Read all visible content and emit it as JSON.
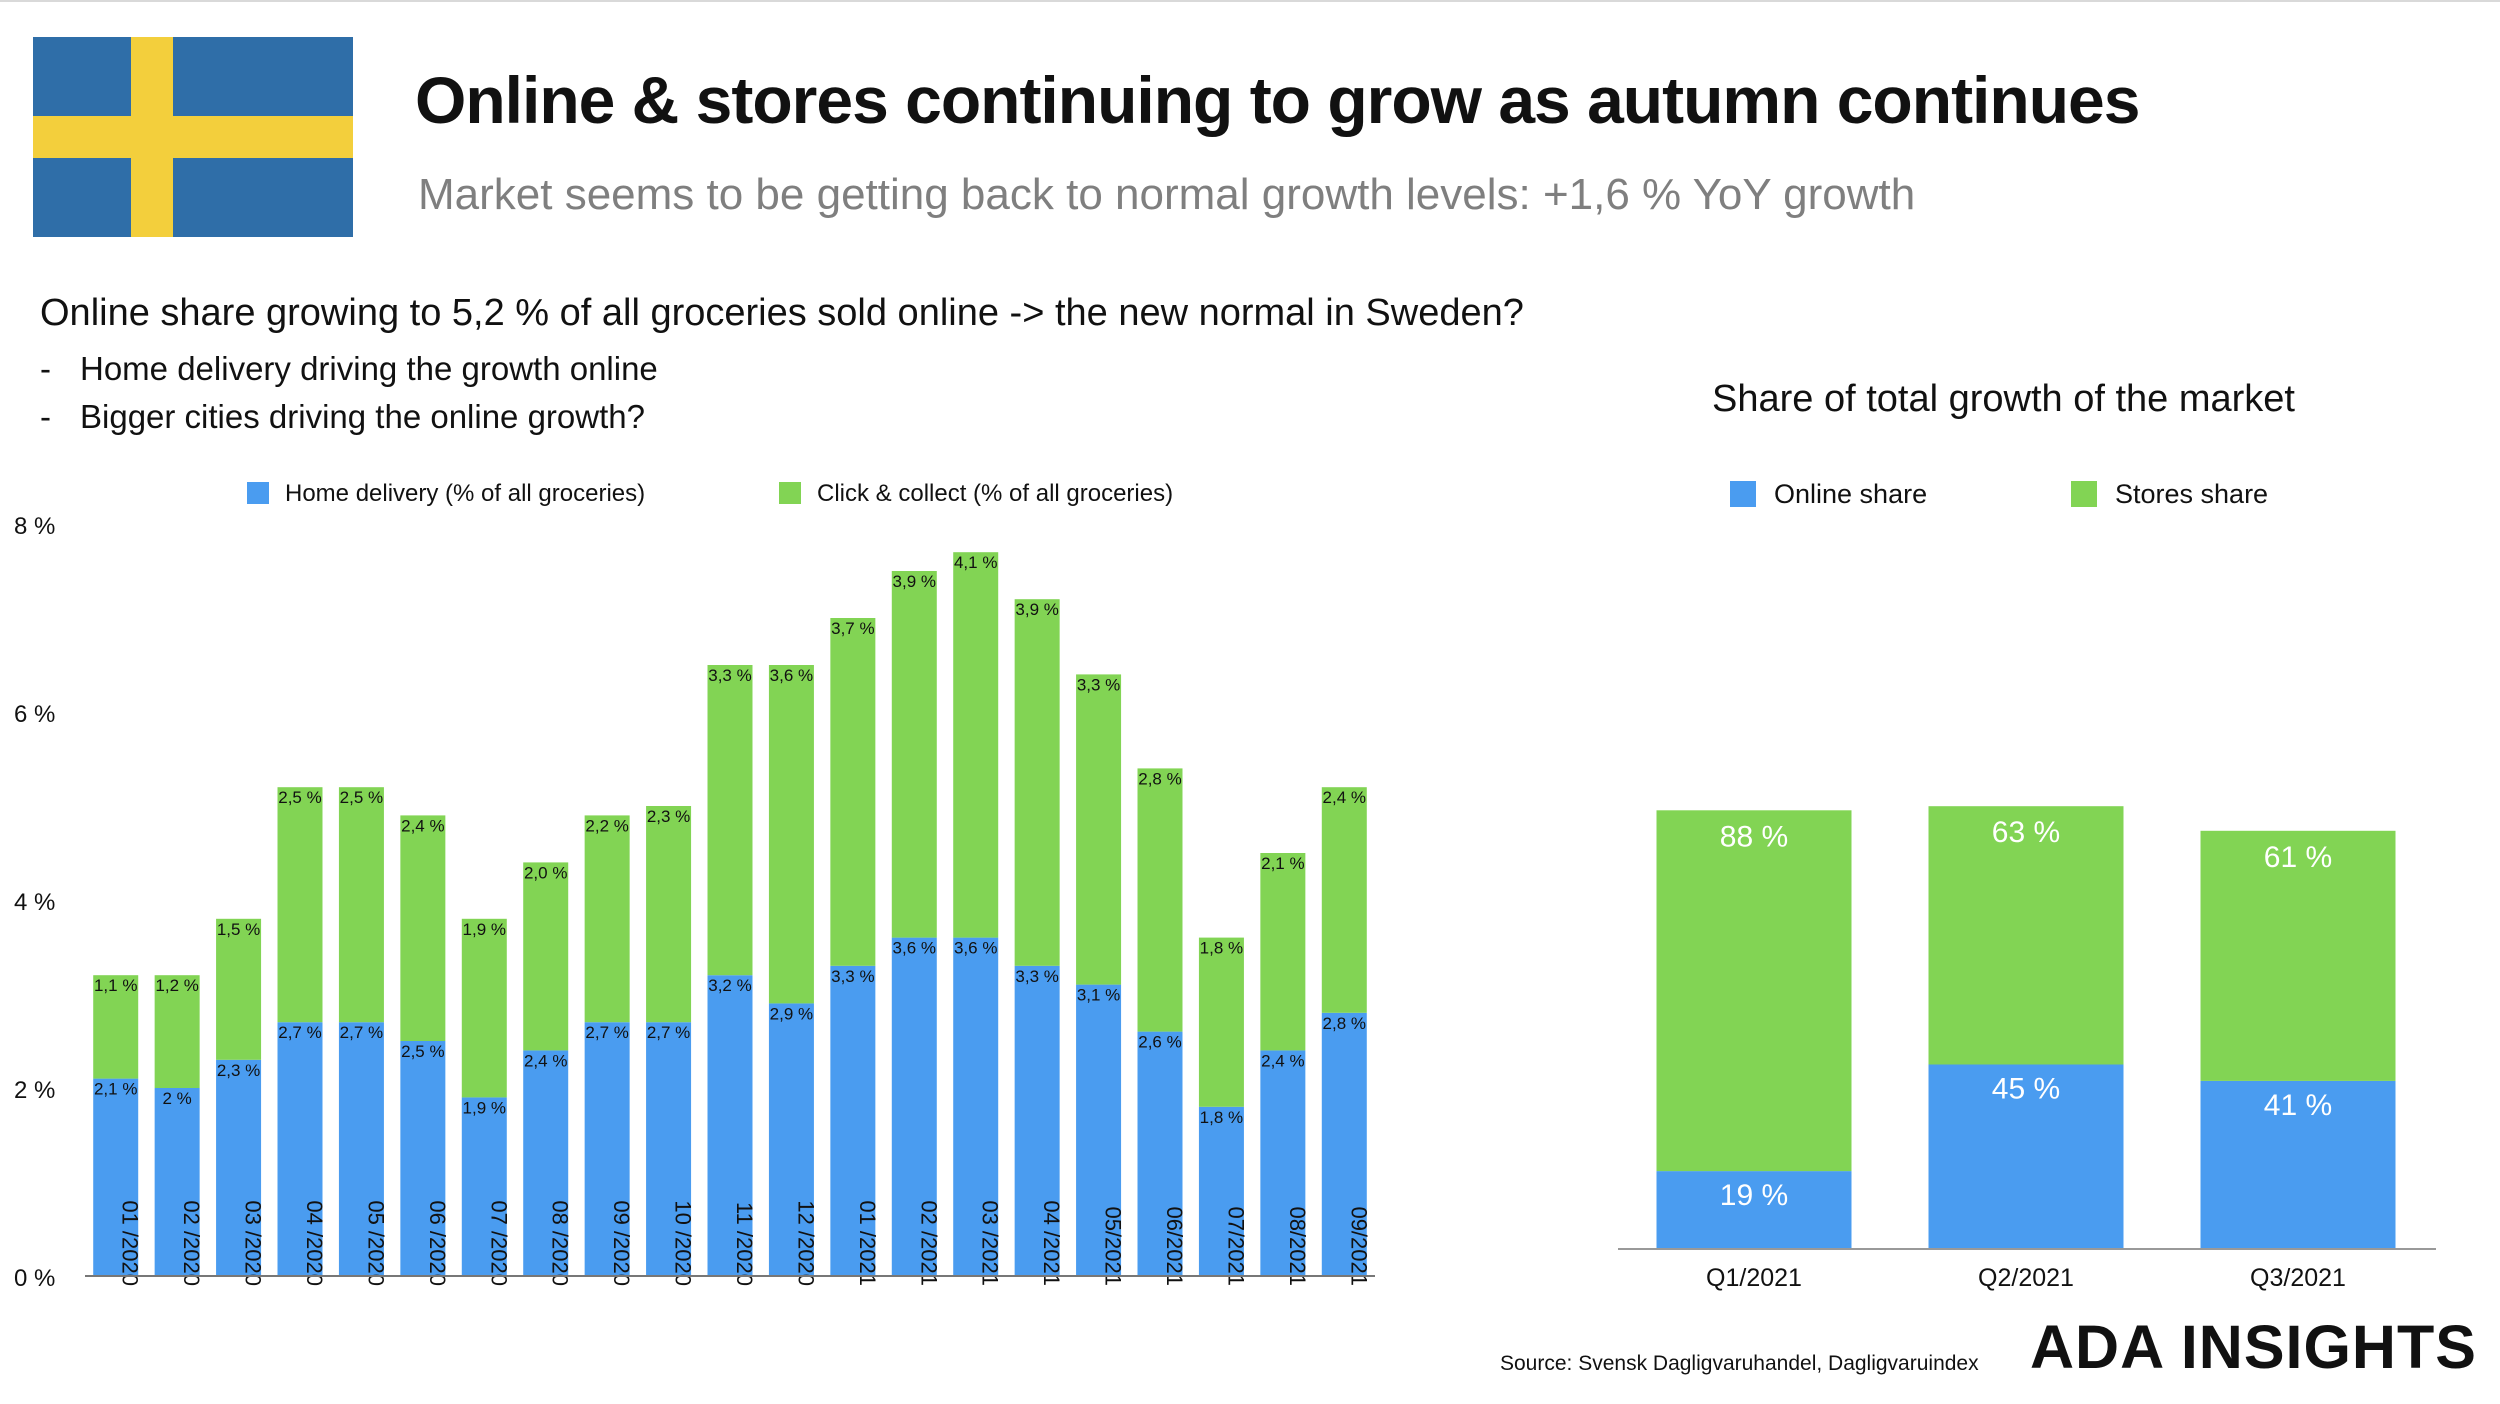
{
  "header": {
    "title": "Online & stores continuing to grow as autumn continues",
    "subtitle": "Market seems to be getting back to normal growth levels: +1,6 % YoY growth",
    "flag_icon": "sweden-flag-icon"
  },
  "commentary": {
    "headline": "Online share growing to 5,2 % of all groceries sold online -> the new normal in Sweden?",
    "bullets": [
      "Home delivery driving the growth online",
      "Bigger cities driving the online growth?"
    ]
  },
  "right_panel_title": "Share of total growth of the market",
  "footer": {
    "source": "Source: Svensk Dagligvaruhandel, Dagligvaruindex",
    "brand": "ADA INSIGHTS"
  },
  "colors": {
    "blue": "#4a9cf0",
    "green": "#82d454",
    "flag_blue": "#2f6ea8",
    "flag_yellow": "#f3cf3c"
  },
  "chart_data": [
    {
      "type": "bar",
      "stacked": true,
      "categories": [
        "01 /2020",
        "02 /2020",
        "03 /2020",
        "04 /2020",
        "05 /2020",
        "06 /2020",
        "07 /2020",
        "08 /2020",
        "09 /2020",
        "10 /2020",
        "11 /2020",
        "12 /2020",
        "01 /2021",
        "02 /2021",
        "03 /2021",
        "04 /2021",
        "05/2021",
        "06/2021",
        "07/2021",
        "08/2021",
        "09/2021"
      ],
      "series": [
        {
          "name": "Home delivery (% of all groceries)",
          "color": "#4a9cf0",
          "values": [
            2.1,
            2.0,
            2.3,
            2.7,
            2.7,
            2.5,
            1.9,
            2.4,
            2.7,
            2.7,
            3.2,
            2.9,
            3.3,
            3.6,
            3.6,
            3.3,
            3.1,
            2.6,
            1.8,
            2.4,
            2.8
          ],
          "labels": [
            "2,1 %",
            "2 %",
            "2,3 %",
            "2,7 %",
            "2,7 %",
            "2,5 %",
            "1,9 %",
            "2,4 %",
            "2,7 %",
            "2,7 %",
            "3,2 %",
            "2,9 %",
            "3,3 %",
            "3,6 %",
            "3,6 %",
            "3,3 %",
            "3,1 %",
            "2,6 %",
            "1,8 %",
            "2,4 %",
            "2,8 %"
          ]
        },
        {
          "name": "Click & collect (% of all groceries)",
          "color": "#82d454",
          "values": [
            1.1,
            1.2,
            1.5,
            2.5,
            2.5,
            2.4,
            1.9,
            2.0,
            2.2,
            2.3,
            3.3,
            3.6,
            3.7,
            3.9,
            4.1,
            3.9,
            3.3,
            2.8,
            1.8,
            2.1,
            2.4
          ],
          "labels": [
            "1,1 %",
            "1,2 %",
            "1,5 %",
            "2,5 %",
            "2,5 %",
            "2,4 %",
            "1,9 %",
            "2,0 %",
            "2,2 %",
            "2,3 %",
            "3,3 %",
            "3,6 %",
            "3,7 %",
            "3,9 %",
            "4,1 %",
            "3,9 %",
            "3,3 %",
            "2,8 %",
            "1,8 %",
            "2,1 %",
            "2,4 %"
          ]
        }
      ],
      "ylim": [
        0,
        8
      ],
      "yticks": [
        0,
        2,
        4,
        6,
        8
      ],
      "ytick_labels": [
        "0 %",
        "2 %",
        "4 %",
        "6 %",
        "8 %"
      ],
      "legend": "top",
      "grid": false
    },
    {
      "type": "bar",
      "stacked": true,
      "categories": [
        "Q1/2021",
        "Q2/2021",
        "Q3/2021"
      ],
      "series": [
        {
          "name": "Online share",
          "color": "#4a9cf0",
          "values": [
            19,
            45,
            41
          ],
          "labels": [
            "19 %",
            "45 %",
            "41 %"
          ]
        },
        {
          "name": "Stores share",
          "color": "#82d454",
          "values": [
            88,
            63,
            61
          ],
          "labels": [
            "88 %",
            "63 %",
            "61 %"
          ]
        }
      ],
      "legend": "top",
      "grid": false
    }
  ]
}
